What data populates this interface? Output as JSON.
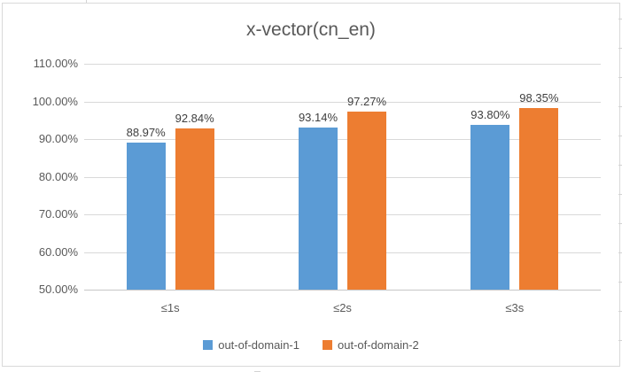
{
  "chart_data": {
    "type": "bar",
    "title": "x-vector(cn_en)",
    "categories": [
      "≤1s",
      "≤2s",
      "≤3s"
    ],
    "series": [
      {
        "name": "out-of-domain-1",
        "color": "#5B9BD5",
        "values": [
          88.97,
          93.14,
          93.8
        ],
        "data_labels": [
          "88.97%",
          "93.14%",
          "93.80%"
        ]
      },
      {
        "name": "out-of-domain-2",
        "color": "#ED7D31",
        "values": [
          92.84,
          97.27,
          98.35
        ],
        "data_labels": [
          "92.84%",
          "97.27%",
          "98.35%"
        ]
      }
    ],
    "xlabel": "",
    "ylabel": "",
    "ylim": [
      50,
      110
    ],
    "y_ticks": [
      50,
      60,
      70,
      80,
      90,
      100,
      110
    ],
    "y_tick_labels": [
      "50.00%",
      "60.00%",
      "70.00%",
      "80.00%",
      "90.00%",
      "100.00%",
      "110.00%"
    ],
    "grid": true,
    "legend_position": "bottom",
    "bar_base_value": 50
  },
  "colors": {
    "background": "#FFFFFF",
    "chart_border": "#D9D9D9",
    "gridline": "#D9D9D9",
    "axis_line": "#C6C6C6",
    "title_text": "#595959",
    "axis_text": "#595959",
    "data_label_text": "#404040",
    "series_1": "#5B9BD5",
    "series_2": "#ED7D31"
  }
}
